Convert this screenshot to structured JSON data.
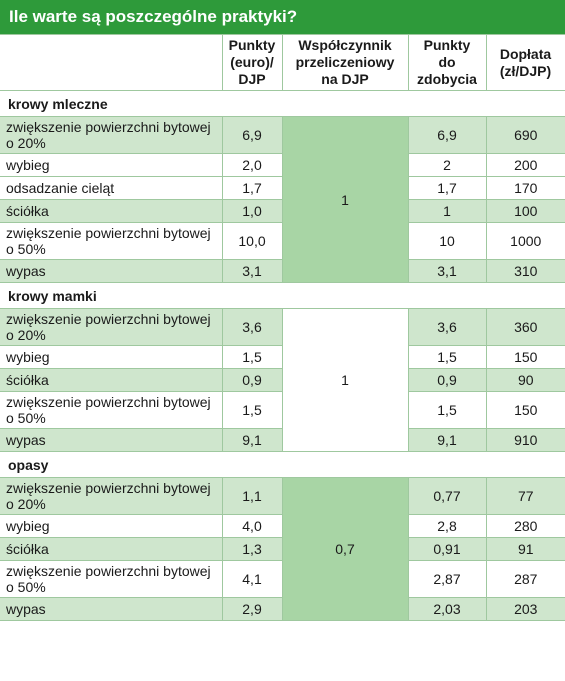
{
  "title": "Ile warte są poszczególne praktyki?",
  "headers": {
    "practice": "",
    "points": "Punkty (euro)/ DJP",
    "factor": "Współczynnik przeliczeniowy na DJP",
    "points_gain": "Punkty do zdobycia",
    "payment": "Dopłata (zł/DJP)"
  },
  "sections": [
    {
      "name": "krowy mleczne",
      "factor": "1",
      "rows": [
        {
          "practice": "zwiększenie powierzchni bytowej o 20%",
          "points": "6,9",
          "gain": "6,9",
          "payment": "690"
        },
        {
          "practice": "wybieg",
          "points": "2,0",
          "gain": "2",
          "payment": "200"
        },
        {
          "practice": "odsadzanie cieląt",
          "points": "1,7",
          "gain": "1,7",
          "payment": "170"
        },
        {
          "practice": "ściółka",
          "points": "1,0",
          "gain": "1",
          "payment": "100"
        },
        {
          "practice": "zwiększenie powierzchni bytowej o 50%",
          "points": "10,0",
          "gain": "10",
          "payment": "1000"
        },
        {
          "practice": "wypas",
          "points": "3,1",
          "gain": "3,1",
          "payment": "310"
        }
      ]
    },
    {
      "name": "krowy mamki",
      "factor": "1",
      "rows": [
        {
          "practice": "zwiększenie powierzchni bytowej o 20%",
          "points": "3,6",
          "gain": "3,6",
          "payment": "360"
        },
        {
          "practice": "wybieg",
          "points": "1,5",
          "gain": "1,5",
          "payment": "150"
        },
        {
          "practice": "ściółka",
          "points": "0,9",
          "gain": "0,9",
          "payment": "90"
        },
        {
          "practice": "zwiększenie powierzchni bytowej o 50%",
          "points": "1,5",
          "gain": "1,5",
          "payment": "150"
        },
        {
          "practice": "wypas",
          "points": "9,1",
          "gain": "9,1",
          "payment": "910"
        }
      ]
    },
    {
      "name": "opasy",
      "factor": "0,7",
      "rows": [
        {
          "practice": "zwiększenie powierzchni bytowej o 20%",
          "points": "1,1",
          "gain": "0,77",
          "payment": "77"
        },
        {
          "practice": "wybieg",
          "points": "4,0",
          "gain": "2,8",
          "payment": "280"
        },
        {
          "practice": "ściółka",
          "points": "1,3",
          "gain": "0,91",
          "payment": "91"
        },
        {
          "practice": "zwiększenie powierzchni bytowej o 50%",
          "points": "4,1",
          "gain": "2,87",
          "payment": "287"
        },
        {
          "practice": "wypas",
          "points": "2,9",
          "gain": "2,03",
          "payment": "203"
        }
      ]
    }
  ],
  "colors": {
    "title_bg": "#2e9a3a",
    "row_green": "#cfe6cd",
    "factor_green": "#a8d5a5",
    "border": "#9fc89f"
  }
}
